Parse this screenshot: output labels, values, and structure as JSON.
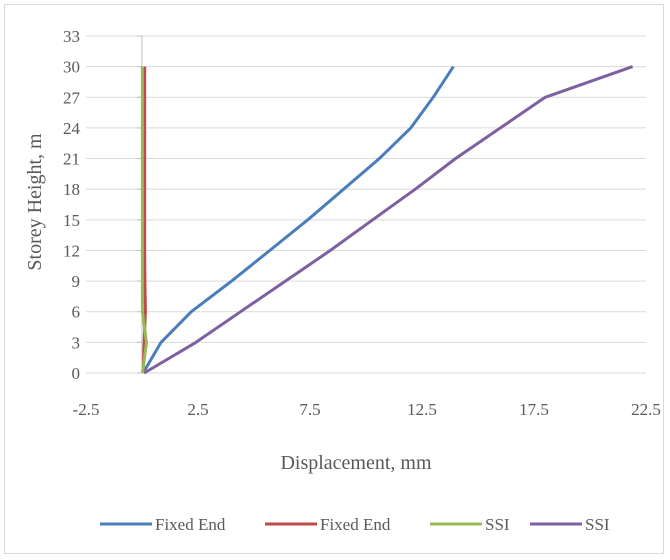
{
  "chart_data": {
    "type": "line",
    "title": "",
    "xlabel": "Displacement, mm",
    "ylabel": "Storey Height, m",
    "xlim": [
      -2.5,
      22.5
    ],
    "ylim": [
      0,
      33
    ],
    "x_ticks": [
      -2.5,
      2.5,
      7.5,
      12.5,
      17.5,
      22.5
    ],
    "y_ticks": [
      0,
      3,
      6,
      9,
      12,
      15,
      18,
      21,
      24,
      27,
      30,
      33
    ],
    "x_tick_labels": [
      "-2.5",
      "2.5",
      "7.5",
      "12.5",
      "17.5",
      "22.5"
    ],
    "y_tick_labels": [
      "0",
      "3",
      "6",
      "9",
      "12",
      "15",
      "18",
      "21",
      "24",
      "27",
      "30",
      "33"
    ],
    "grid": "horizontal",
    "legend_position": "bottom",
    "series": [
      {
        "name": "Fixed End",
        "color": "#4a7ebb",
        "points": [
          [
            0.05,
            0
          ],
          [
            0.85,
            3
          ],
          [
            2.2,
            6
          ],
          [
            4.0,
            9
          ],
          [
            5.7,
            12
          ],
          [
            7.4,
            15
          ],
          [
            9.0,
            18
          ],
          [
            10.6,
            21
          ],
          [
            12.0,
            24
          ],
          [
            13.0,
            27
          ],
          [
            13.9,
            30
          ]
        ]
      },
      {
        "name": "Fixed End",
        "color": "#be4b48",
        "points": [
          [
            0.05,
            0
          ],
          [
            0.1,
            3
          ],
          [
            0.15,
            6
          ],
          [
            0.13,
            9
          ],
          [
            0.12,
            12
          ],
          [
            0.12,
            15
          ],
          [
            0.12,
            18
          ],
          [
            0.12,
            21
          ],
          [
            0.12,
            24
          ],
          [
            0.12,
            27
          ],
          [
            0.12,
            30
          ]
        ]
      },
      {
        "name": "SSI",
        "color": "#98b954",
        "points": [
          [
            0.02,
            0
          ],
          [
            0.2,
            3
          ],
          [
            0.02,
            6
          ],
          [
            0.02,
            9
          ],
          [
            0.02,
            12
          ],
          [
            0.02,
            15
          ],
          [
            0.02,
            18
          ],
          [
            0.02,
            21
          ],
          [
            0.02,
            24
          ],
          [
            0.02,
            27
          ],
          [
            0.02,
            30
          ]
        ]
      },
      {
        "name": "SSI",
        "color": "#7d60a0",
        "points": [
          [
            0.1,
            0
          ],
          [
            2.4,
            3
          ],
          [
            4.4,
            6
          ],
          [
            6.4,
            9
          ],
          [
            8.4,
            12
          ],
          [
            10.3,
            15
          ],
          [
            12.2,
            18
          ],
          [
            14.0,
            21
          ],
          [
            16.0,
            24
          ],
          [
            18.0,
            27
          ],
          [
            21.9,
            30
          ]
        ]
      }
    ]
  }
}
